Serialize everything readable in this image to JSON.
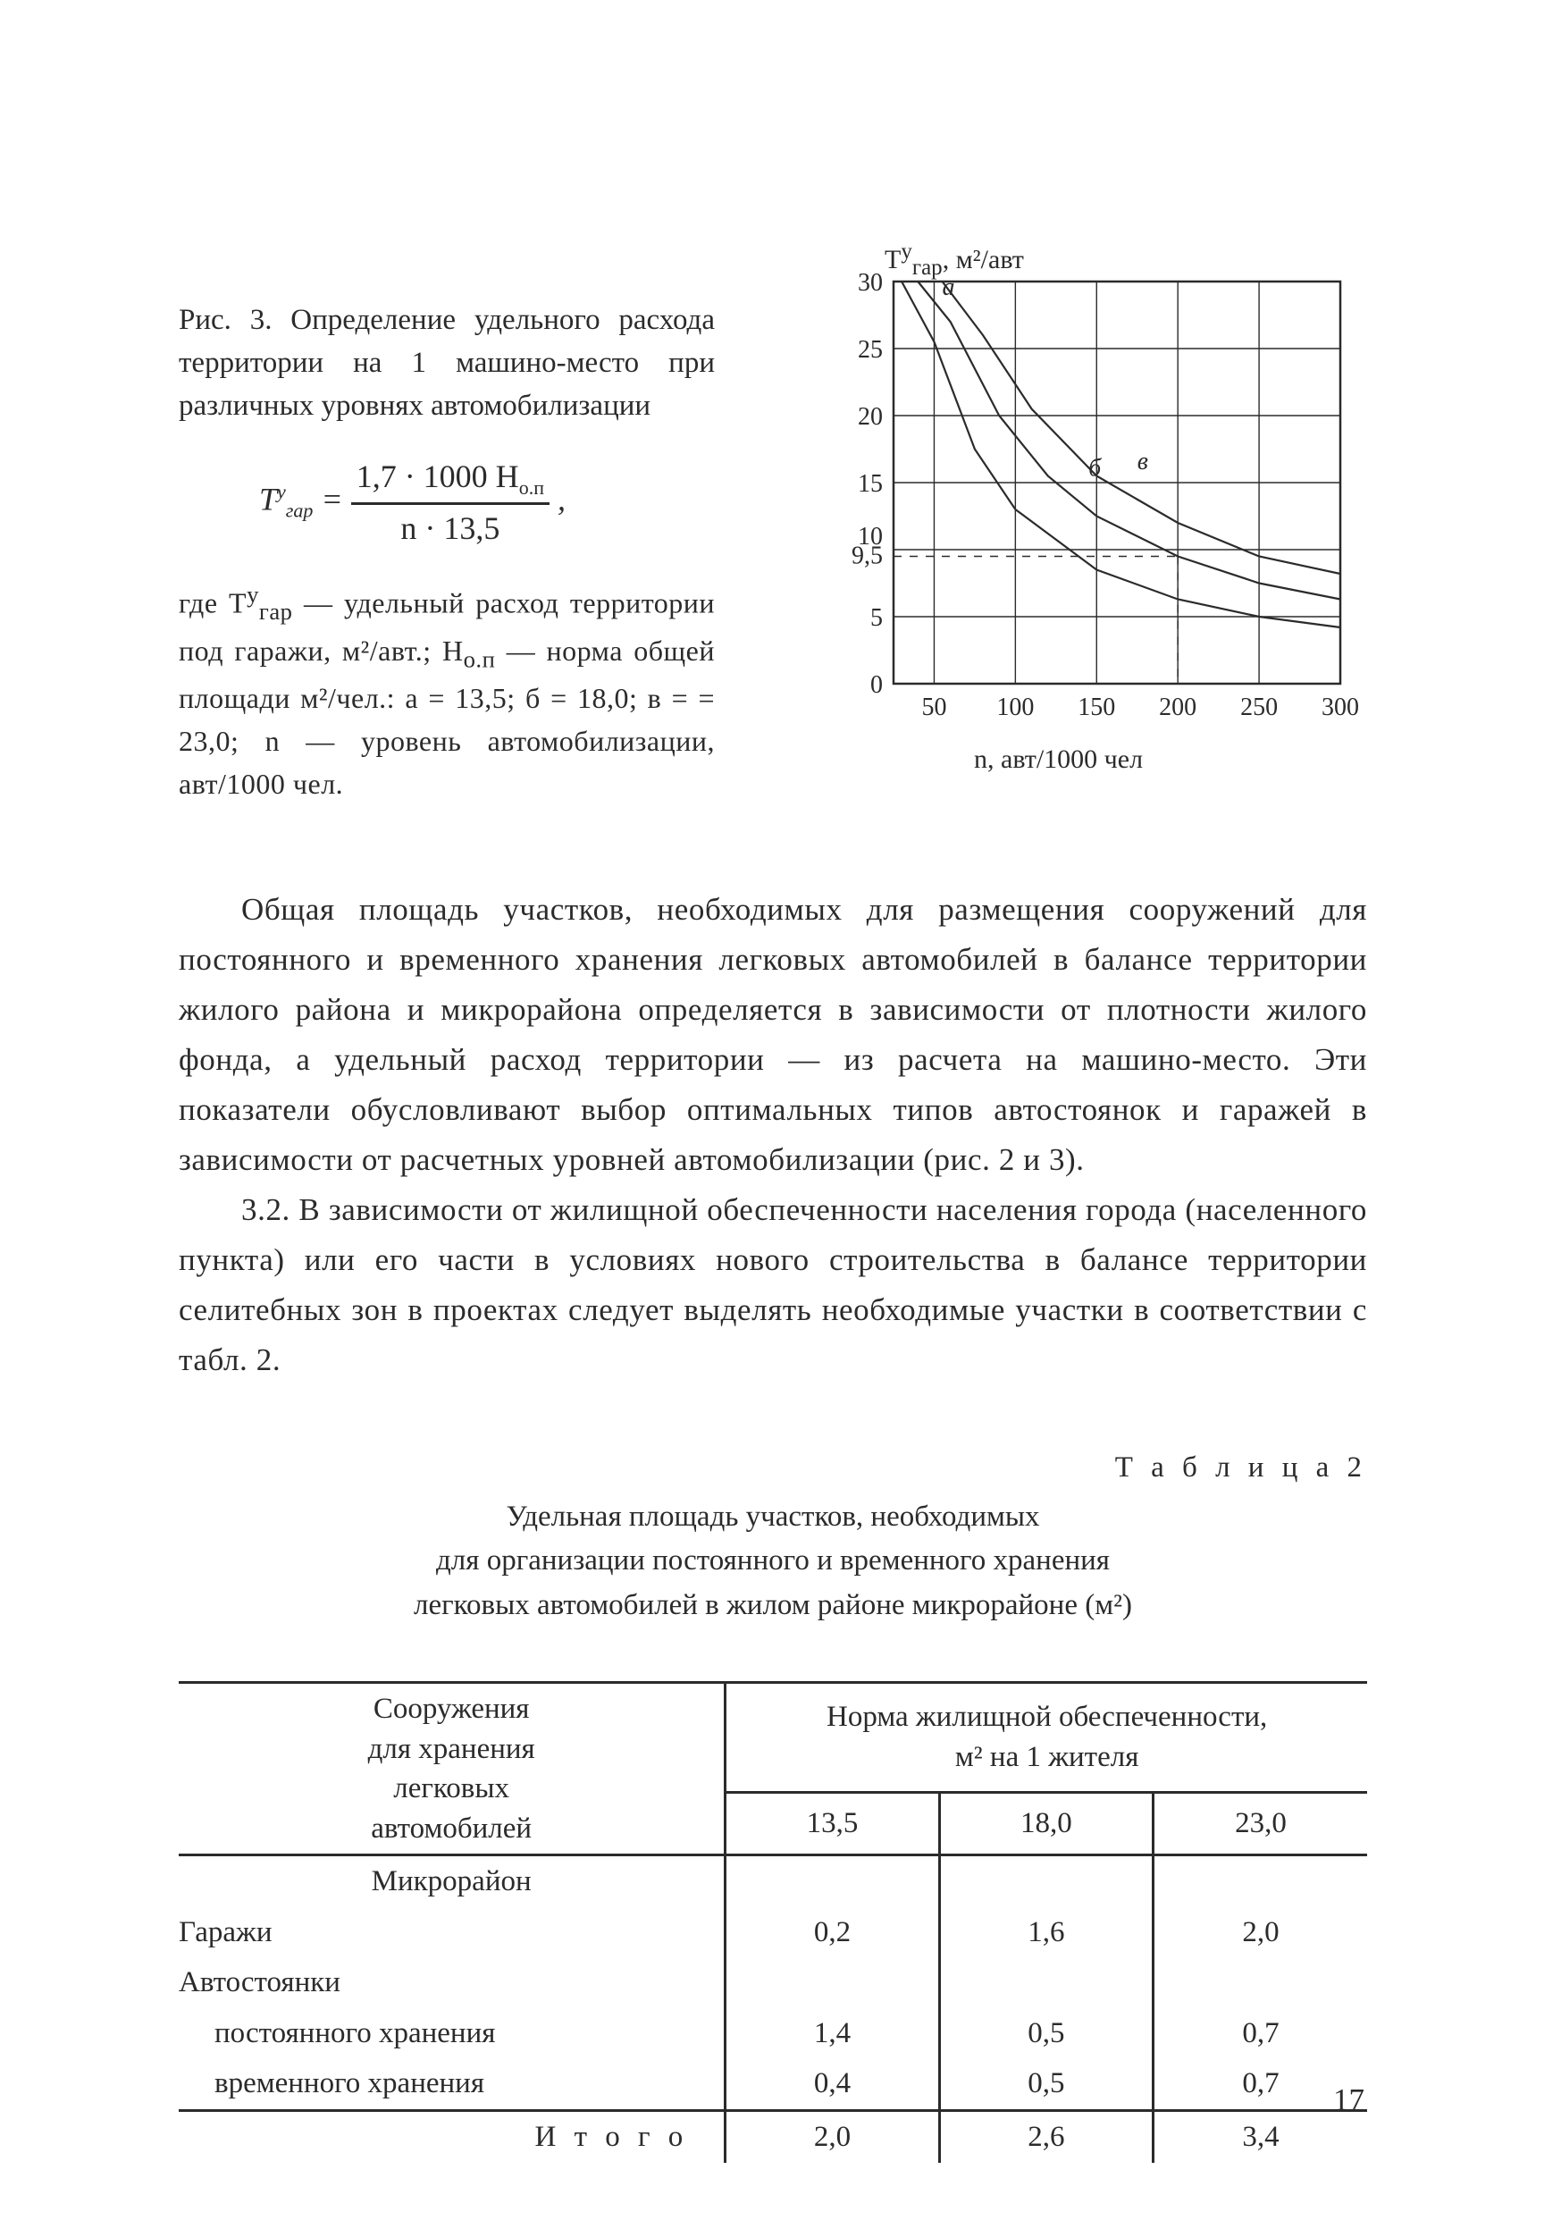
{
  "figure": {
    "caption": "Рис. 3. Определение удельного расхода территории на 1 машино-место при различных уровнях автомобилизации",
    "formula_left": "T",
    "formula_sup": "у",
    "formula_sub": "гар",
    "formula_num": "1,7 · 1000 H",
    "formula_num_sub": "о.п",
    "formula_den": "n · 13,5",
    "where": "где  T",
    "where2": " — удельный расход территории под гаражи, м²/авт.; H",
    "where3": " — норма общей площади м²/чел.:  a = 13,5;  б = 18,0;  в = = 23,0;  n — уровень автомобилизации, авт/1000 чел."
  },
  "chart": {
    "y_title": "T",
    "y_title_sup": "у",
    "y_title_sub": "гар",
    "y_unit": ", м²/авт",
    "x_title": "n, авт/1000 чел",
    "xlim": [
      25,
      300
    ],
    "ylim": [
      0,
      30
    ],
    "xticks": [
      50,
      100,
      150,
      200,
      250,
      300
    ],
    "yticks": [
      0,
      5,
      9.5,
      10,
      15,
      20,
      25,
      30
    ],
    "ytick_labels": [
      "0",
      "5",
      "9,5",
      "10",
      "15",
      "20",
      "25",
      "30"
    ],
    "grid_color": "#2b2b2b",
    "line_color": "#2b2b2b",
    "line_width": 2.2,
    "background": "#ffffff",
    "curves": {
      "a": [
        [
          30,
          30
        ],
        [
          50,
          25.5
        ],
        [
          75,
          17.5
        ],
        [
          100,
          13
        ],
        [
          150,
          8.5
        ],
        [
          200,
          6.3
        ],
        [
          250,
          5
        ],
        [
          300,
          4.2
        ]
      ],
      "b": [
        [
          40,
          30
        ],
        [
          60,
          27
        ],
        [
          90,
          20
        ],
        [
          120,
          15.5
        ],
        [
          150,
          12.5
        ],
        [
          200,
          9.5
        ],
        [
          250,
          7.5
        ],
        [
          300,
          6.3
        ]
      ],
      "v": [
        [
          55,
          30
        ],
        [
          80,
          26
        ],
        [
          110,
          20.5
        ],
        [
          150,
          15.5
        ],
        [
          200,
          12
        ],
        [
          250,
          9.5
        ],
        [
          300,
          8.2
        ]
      ]
    },
    "curve_labels": {
      "a": "а",
      "b": "б",
      "v": "в"
    },
    "dash": {
      "h_at_y": 9.5,
      "v_at_x": 200
    }
  },
  "para1": "Общая площадь участков, необходимых для размещения сооружений для постоянного и временного хранения легковых автомобилей в балансе территории жилого района и микрорайона определяется в зависимости от плотности жилого фонда, а удельный расход территории — из расчета на машино-место. Эти показатели обусловливают выбор оптимальных типов автостоянок и гаражей в зависимости от расчетных уровней автомобилизации (рис. 2 и 3).",
  "para2": "3.2. В зависимости от жилищной обеспеченности населения города (населенного пункта) или его части в условиях нового строительства в балансе территории селитебных зон в проектах следует выделять необходимые участки в соответствии с табл. 2.",
  "table": {
    "label": "Т а б л и ц а  2",
    "title_l1": "Удельная площадь участков, необходимых",
    "title_l2": "для организации постоянного и временного хранения",
    "title_l3": "легковых автомобилей в жилом районе микрорайоне  (м²)",
    "head_left_l1": "Сооружения",
    "head_left_l2": "для хранения",
    "head_left_l3": "легковых",
    "head_left_l4": "автомобилей",
    "head_right": "Норма жилищной обеспеченности,",
    "head_right2": "м²  на 1 жителя",
    "cols": [
      "13,5",
      "18,0",
      "23,0"
    ],
    "section": "Микрорайон",
    "rows": [
      {
        "name": "Гаражи",
        "v": [
          "0,2",
          "1,6",
          "2,0"
        ]
      },
      {
        "name": "Автостоянки",
        "v": [
          "",
          "",
          ""
        ]
      },
      {
        "name": "постоянного хранения",
        "sub": true,
        "v": [
          "1,4",
          "0,5",
          "0,7"
        ]
      },
      {
        "name": "временного хранения",
        "sub": true,
        "v": [
          "0,4",
          "0,5",
          "0,7"
        ]
      }
    ],
    "total_label": "И т о г о",
    "total": [
      "2,0",
      "2,6",
      "3,4"
    ]
  },
  "page_number": "17"
}
